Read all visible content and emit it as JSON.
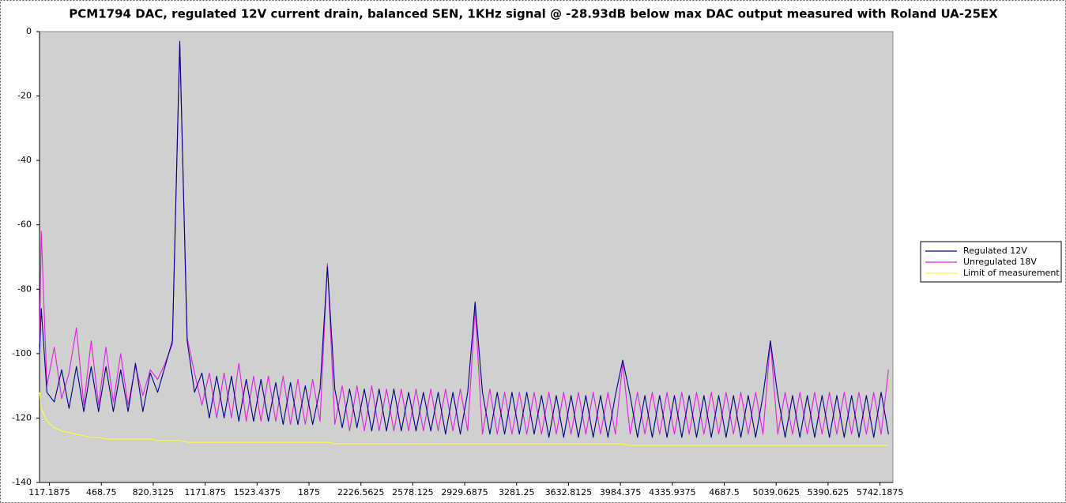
{
  "chart_data": {
    "type": "line",
    "title": "PCM1794 DAC, regulated 12V current drain, balanced SEN, 1KHz signal @ -28.93dB below max DAC output measured with Roland UA-25EX",
    "x": [
      50,
      62,
      100,
      150,
      200,
      250,
      300,
      350,
      400,
      450,
      500,
      550,
      600,
      650,
      700,
      750,
      800,
      850,
      900,
      950,
      1000,
      1050,
      1100,
      1150,
      1200,
      1250,
      1300,
      1350,
      1400,
      1450,
      1500,
      1550,
      1600,
      1650,
      1700,
      1750,
      1800,
      1850,
      1900,
      1950,
      2000,
      2050,
      2100,
      2150,
      2200,
      2250,
      2300,
      2350,
      2400,
      2450,
      2500,
      2550,
      2600,
      2650,
      2700,
      2750,
      2800,
      2850,
      2900,
      2950,
      3000,
      3050,
      3100,
      3150,
      3200,
      3250,
      3300,
      3350,
      3400,
      3450,
      3500,
      3550,
      3600,
      3650,
      3700,
      3750,
      3800,
      3850,
      3900,
      3950,
      4000,
      4050,
      4100,
      4150,
      4200,
      4250,
      4300,
      4350,
      4400,
      4450,
      4500,
      4550,
      4600,
      4650,
      4700,
      4750,
      4800,
      4850,
      4900,
      4950,
      5000,
      5050,
      5100,
      5150,
      5200,
      5250,
      5300,
      5350,
      5400,
      5450,
      5500,
      5550,
      5600,
      5650,
      5700,
      5750,
      5800
    ],
    "series": [
      {
        "name": "Regulated 12V",
        "color": "#000080",
        "values": [
          -100,
          -86,
          -112,
          -115,
          -105,
          -117,
          -104,
          -118,
          -104,
          -118,
          -104,
          -118,
          -105,
          -118,
          -103,
          -118,
          -106,
          -112,
          -104,
          -96,
          -3,
          -96,
          -112,
          -106,
          -120,
          -107,
          -120,
          -107,
          -121,
          -108,
          -121,
          -108,
          -121,
          -109,
          -122,
          -109,
          -122,
          -110,
          -122,
          -111,
          -73,
          -111,
          -123,
          -111,
          -123,
          -111,
          -124,
          -111,
          -124,
          -111,
          -124,
          -112,
          -124,
          -112,
          -124,
          -112,
          -125,
          -112,
          -125,
          -112,
          -84,
          -112,
          -125,
          -112,
          -125,
          -112,
          -125,
          -112,
          -125,
          -113,
          -126,
          -113,
          -126,
          -113,
          -126,
          -113,
          -126,
          -113,
          -126,
          -113,
          -102,
          -113,
          -126,
          -113,
          -126,
          -113,
          -126,
          -113,
          -126,
          -113,
          -126,
          -113,
          -126,
          -113,
          -126,
          -113,
          -126,
          -113,
          -126,
          -113,
          -96,
          -113,
          -126,
          -113,
          -126,
          -113,
          -126,
          -113,
          -126,
          -113,
          -126,
          -113,
          -126,
          -113,
          -126,
          -112,
          -125
        ]
      },
      {
        "name": "Unregulated 18V",
        "color": "#e020e0",
        "values": [
          -97,
          -62,
          -110,
          -98,
          -114,
          -106,
          -92,
          -116,
          -96,
          -116,
          -98,
          -115,
          -100,
          -116,
          -104,
          -113,
          -105,
          -108,
          -103,
          -97,
          -3,
          -95,
          -106,
          -116,
          -106,
          -120,
          -106,
          -120,
          -103,
          -121,
          -107,
          -121,
          -107,
          -121,
          -107,
          -122,
          -108,
          -122,
          -108,
          -121,
          -72,
          -122,
          -110,
          -124,
          -110,
          -124,
          -110,
          -124,
          -111,
          -124,
          -111,
          -124,
          -111,
          -124,
          -111,
          -124,
          -111,
          -124,
          -111,
          -124,
          -86,
          -125,
          -111,
          -125,
          -112,
          -125,
          -112,
          -125,
          -112,
          -125,
          -112,
          -125,
          -112,
          -125,
          -112,
          -125,
          -112,
          -125,
          -112,
          -125,
          -103,
          -125,
          -112,
          -125,
          -112,
          -125,
          -112,
          -125,
          -112,
          -125,
          -112,
          -125,
          -112,
          -125,
          -112,
          -125,
          -112,
          -125,
          -112,
          -125,
          -96,
          -125,
          -112,
          -125,
          -112,
          -125,
          -112,
          -125,
          -112,
          -125,
          -112,
          -125,
          -112,
          -125,
          -112,
          -125,
          -105
        ]
      },
      {
        "name": "Limit of measurement",
        "color": "#ffff33",
        "values": [
          -112,
          -117,
          -121,
          -123,
          -124,
          -124.5,
          -125,
          -125.5,
          -126,
          -126,
          -126.5,
          -126.5,
          -126.5,
          -126.5,
          -126.5,
          -126.5,
          -126.5,
          -127,
          -127,
          -127,
          -127,
          -127.5,
          -127.5,
          -127.5,
          -127.5,
          -127.5,
          -127.5,
          -127.5,
          -127.5,
          -127.5,
          -127.5,
          -127.5,
          -127.5,
          -127.5,
          -127.5,
          -127.5,
          -127.5,
          -127.5,
          -127.5,
          -127.5,
          -127.5,
          -128,
          -128,
          -128,
          -128,
          -128,
          -128,
          -128,
          -128,
          -128,
          -128,
          -128,
          -128,
          -128,
          -128,
          -128,
          -128,
          -128,
          -128,
          -128,
          -128,
          -128,
          -128,
          -128,
          -128,
          -128,
          -128,
          -128,
          -128,
          -128,
          -128,
          -128,
          -128,
          -128,
          -128,
          -128,
          -128,
          -128,
          -128,
          -128,
          -128,
          -128.5,
          -128.5,
          -128.5,
          -128.5,
          -128.5,
          -128.5,
          -128.5,
          -128.5,
          -128.5,
          -128.5,
          -128.5,
          -128.5,
          -128.5,
          -128.5,
          -128.5,
          -128.5,
          -128.5,
          -128.5,
          -128.5,
          -128.5,
          -128.5,
          -128.5,
          -128.5,
          -128.5,
          -128.5,
          -128.5,
          -128.5,
          -128.5,
          -128.5,
          -128.5,
          -128.5,
          -128.5,
          -128.5,
          -128.5,
          -128.5,
          -128.5
        ]
      }
    ],
    "xlim": [
      50,
      5830
    ],
    "xticks": [
      117.1875,
      468.75,
      820.3125,
      1171.875,
      1523.4375,
      1875,
      2226.5625,
      2578.125,
      2929.6875,
      3281.25,
      3632.8125,
      3984.375,
      4335.9375,
      4687.5,
      5039.0625,
      5390.625,
      5742.1875
    ],
    "ylim": [
      -140,
      0
    ],
    "yticks": [
      0,
      -20,
      -40,
      -60,
      -80,
      -100,
      -120,
      -140
    ],
    "grid": false,
    "legend": "right",
    "plot_background": "#d0d0d0"
  }
}
